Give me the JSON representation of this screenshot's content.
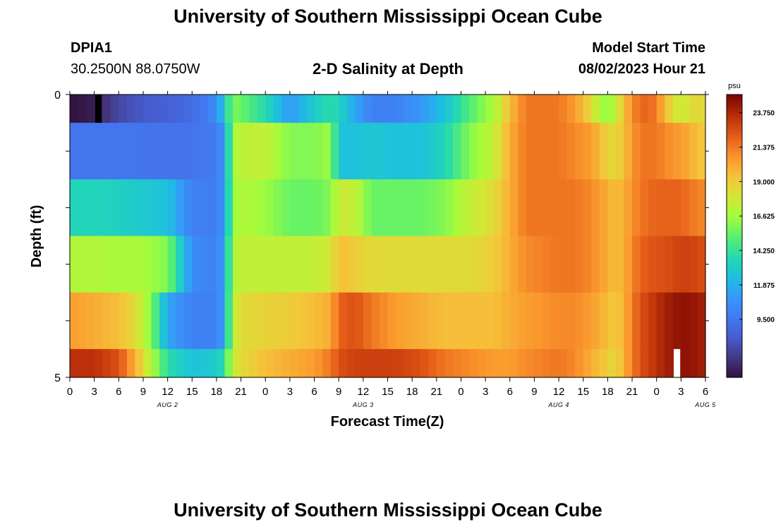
{
  "header": {
    "title": "University of Southern Mississippi Ocean Cube",
    "station": "DPIA1",
    "coordinates": "30.2500N  88.0750W",
    "subtitle": "2-D Salinity at Depth",
    "model_start_label": "Model Start Time",
    "model_start_value": "08/02/2023 Hour 21"
  },
  "footer": {
    "title": "University of Southern Mississippi Ocean Cube"
  },
  "chart_data": {
    "type": "heatmap",
    "title": "2-D Salinity at Depth",
    "xlabel": "Forecast Time(Z)",
    "ylabel": "Depth (ft)",
    "ylim": [
      0,
      5
    ],
    "y_tick_labels": [
      "0",
      "5"
    ],
    "x_tick_labels": [
      "0",
      "3",
      "6",
      "9",
      "12",
      "15",
      "18",
      "21",
      "0",
      "3",
      "6",
      "9",
      "12",
      "15",
      "18",
      "21",
      "0",
      "3",
      "6",
      "9",
      "12",
      "15",
      "18",
      "21",
      "0",
      "3",
      "6"
    ],
    "date_labels": [
      {
        "label": "AUG 2",
        "hour": 12
      },
      {
        "label": "AUG 3",
        "hour": 36
      },
      {
        "label": "AUG 4",
        "hour": 60
      },
      {
        "label": "AUG 5",
        "hour": 78
      }
    ],
    "x_range_hours": [
      0,
      78
    ],
    "depth_layers": 5,
    "keyframes": [
      {
        "hour": 0,
        "values": [
          5.5,
          9.5,
          13.5,
          17.0,
          20.5,
          23.5
        ]
      },
      {
        "hour": 3,
        "values": [
          6.0,
          9.5,
          13.5,
          17.0,
          20.0,
          23.5
        ]
      },
      {
        "hour": 6,
        "values": [
          7.5,
          9.5,
          13.3,
          16.8,
          19.5,
          22.5
        ]
      },
      {
        "hour": 8,
        "values": [
          8.0,
          9.5,
          13.0,
          16.8,
          18.5,
          20.0
        ]
      },
      {
        "hour": 10,
        "values": [
          8.3,
          9.4,
          12.8,
          16.5,
          16.0,
          17.0
        ]
      },
      {
        "hour": 12,
        "values": [
          8.5,
          9.4,
          12.5,
          16.0,
          11.5,
          14.0
        ]
      },
      {
        "hour": 15,
        "values": [
          9.0,
          9.4,
          10.0,
          10.5,
          10.0,
          12.5
        ]
      },
      {
        "hour": 18,
        "values": [
          10.5,
          9.8,
          9.8,
          10.0,
          10.0,
          13.0
        ]
      },
      {
        "hour": 19,
        "values": [
          13.0,
          11.0,
          11.0,
          11.5,
          11.5,
          14.0
        ]
      },
      {
        "hour": 20,
        "values": [
          16.0,
          16.8,
          16.5,
          17.0,
          17.5,
          17.8
        ]
      },
      {
        "hour": 21,
        "values": [
          15.5,
          17.3,
          17.0,
          17.5,
          18.5,
          18.5
        ]
      },
      {
        "hour": 24,
        "values": [
          13.8,
          17.5,
          16.5,
          17.5,
          18.8,
          19.5
        ]
      },
      {
        "hour": 27,
        "values": [
          11.0,
          16.0,
          15.5,
          17.5,
          19.0,
          20.0
        ]
      },
      {
        "hour": 30,
        "values": [
          13.0,
          16.0,
          15.5,
          17.5,
          19.5,
          20.5
        ]
      },
      {
        "hour": 32,
        "values": [
          14.0,
          16.5,
          16.0,
          18.0,
          20.0,
          21.5
        ]
      },
      {
        "hour": 33,
        "values": [
          13.5,
          12.5,
          17.8,
          19.5,
          22.0,
          22.5
        ]
      },
      {
        "hour": 35,
        "values": [
          11.5,
          12.5,
          17.5,
          19.0,
          22.5,
          23.0
        ]
      },
      {
        "hour": 37,
        "values": [
          10.0,
          12.8,
          15.5,
          18.5,
          21.5,
          23.0
        ]
      },
      {
        "hour": 40,
        "values": [
          10.0,
          12.5,
          15.5,
          18.5,
          20.5,
          23.0
        ]
      },
      {
        "hour": 43,
        "values": [
          11.0,
          12.5,
          15.5,
          18.5,
          20.0,
          22.5
        ]
      },
      {
        "hour": 46,
        "values": [
          12.5,
          13.5,
          16.0,
          18.5,
          19.5,
          21.5
        ]
      },
      {
        "hour": 49,
        "values": [
          15.0,
          16.0,
          17.5,
          18.5,
          19.5,
          21.0
        ]
      },
      {
        "hour": 52,
        "values": [
          16.8,
          17.5,
          18.5,
          19.0,
          19.5,
          20.5
        ]
      },
      {
        "hour": 54,
        "values": [
          19.5,
          20.0,
          20.0,
          20.0,
          20.0,
          20.5
        ]
      },
      {
        "hour": 56,
        "values": [
          21.5,
          21.5,
          21.5,
          21.0,
          20.5,
          21.0
        ]
      },
      {
        "hour": 60,
        "values": [
          21.5,
          21.5,
          21.5,
          21.5,
          21.0,
          21.5
        ]
      },
      {
        "hour": 62,
        "values": [
          20.5,
          21.0,
          21.5,
          21.5,
          21.0,
          21.0
        ]
      },
      {
        "hour": 64,
        "values": [
          18.5,
          20.5,
          21.0,
          21.0,
          20.5,
          20.0
        ]
      },
      {
        "hour": 65,
        "values": [
          17.0,
          19.5,
          20.5,
          20.5,
          20.0,
          19.5
        ]
      },
      {
        "hour": 66,
        "values": [
          16.0,
          18.8,
          20.0,
          20.0,
          19.5,
          19.0
        ]
      },
      {
        "hour": 67,
        "values": [
          17.5,
          18.5,
          19.5,
          19.5,
          19.0,
          18.5
        ]
      },
      {
        "hour": 68,
        "values": [
          19.5,
          19.5,
          20.0,
          20.0,
          20.0,
          20.0
        ]
      },
      {
        "hour": 70,
        "values": [
          22.0,
          21.5,
          21.5,
          22.0,
          22.5,
          22.5
        ]
      },
      {
        "hour": 72,
        "values": [
          21.5,
          21.5,
          22.0,
          22.5,
          23.5,
          23.5
        ]
      },
      {
        "hour": 73,
        "values": [
          19.5,
          21.0,
          22.0,
          22.5,
          24.0,
          24.0
        ]
      },
      {
        "hour": 75,
        "values": [
          17.5,
          20.5,
          22.0,
          23.0,
          24.5,
          24.5
        ]
      },
      {
        "hour": 76,
        "values": [
          18.5,
          20.0,
          21.5,
          23.0,
          24.5,
          24.5
        ]
      },
      {
        "hour": 78,
        "values": [
          18.5,
          19.0,
          21.0,
          22.5,
          24.0,
          24.0
        ]
      }
    ],
    "colorbar": {
      "unit": "psu",
      "ticks": [
        9.5,
        11.875,
        14.25,
        16.625,
        19.0,
        21.375,
        23.75
      ],
      "tick_labels": [
        "9.500",
        "11.875",
        "14.250",
        "16.625",
        "19.000",
        "21.375",
        "23.750"
      ],
      "range": [
        5.5,
        25.0
      ]
    },
    "missing_data_markers": [
      {
        "hour": 3.5,
        "layer": 0,
        "color": "#000000"
      },
      {
        "hour": 74.5,
        "layer": 5,
        "color": "#ffffff"
      }
    ]
  }
}
